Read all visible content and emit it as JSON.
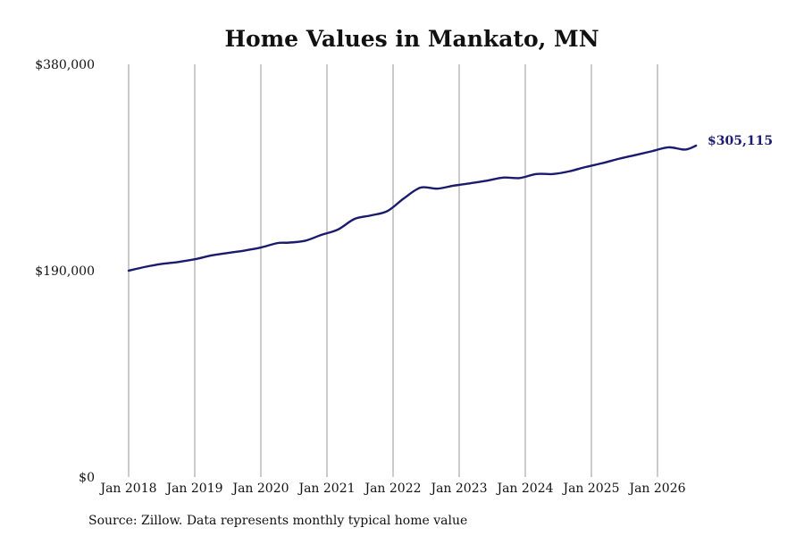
{
  "chart_data": {
    "type": "line",
    "title": "Home Values in Mankato, MN",
    "xlabel": "",
    "ylabel": "",
    "ylim": [
      0,
      380000
    ],
    "y_ticks": [
      {
        "value": 0,
        "label": "$0"
      },
      {
        "value": 190000,
        "label": "$190,000"
      },
      {
        "value": 380000,
        "label": "$380,000"
      }
    ],
    "x_ticks": [
      {
        "value": "2018-01",
        "label": "Jan 2018"
      },
      {
        "value": "2019-01",
        "label": "Jan 2019"
      },
      {
        "value": "2020-01",
        "label": "Jan 2020"
      },
      {
        "value": "2021-01",
        "label": "Jan 2021"
      },
      {
        "value": "2022-01",
        "label": "Jan 2022"
      },
      {
        "value": "2023-01",
        "label": "Jan 2023"
      },
      {
        "value": "2024-01",
        "label": "Jan 2024"
      },
      {
        "value": "2025-01",
        "label": "Jan 2025"
      },
      {
        "value": "2026-01",
        "label": "Jan 2026"
      }
    ],
    "grid": "vertical",
    "line_color": "#1a1a6e",
    "end_label": "$305,115",
    "source": "Source: Zillow. Data represents monthly typical home value",
    "series": [
      {
        "x": [
          "2018-01",
          "2018-04",
          "2018-07",
          "2018-10",
          "2019-01",
          "2019-04",
          "2019-07",
          "2019-10",
          "2020-01",
          "2020-04",
          "2020-06",
          "2020-09",
          "2020-12",
          "2021-03",
          "2021-06",
          "2021-09",
          "2021-12",
          "2022-03",
          "2022-06",
          "2022-09",
          "2022-12",
          "2023-03",
          "2023-06",
          "2023-09",
          "2023-12",
          "2024-03",
          "2024-06",
          "2024-09",
          "2024-12",
          "2025-03",
          "2025-06",
          "2025-09",
          "2025-12",
          "2026-03",
          "2026-06",
          "2026-08"
        ],
        "y": [
          190000,
          193500,
          196200,
          198000,
          200500,
          204000,
          206300,
          208500,
          211300,
          215400,
          215800,
          217500,
          223000,
          227900,
          237600,
          240900,
          245000,
          256700,
          266500,
          265500,
          268300,
          270500,
          272800,
          275700,
          275300,
          279000,
          279000,
          281500,
          285500,
          289000,
          293000,
          296500,
          300000,
          303600,
          301500,
          305115
        ]
      }
    ]
  }
}
